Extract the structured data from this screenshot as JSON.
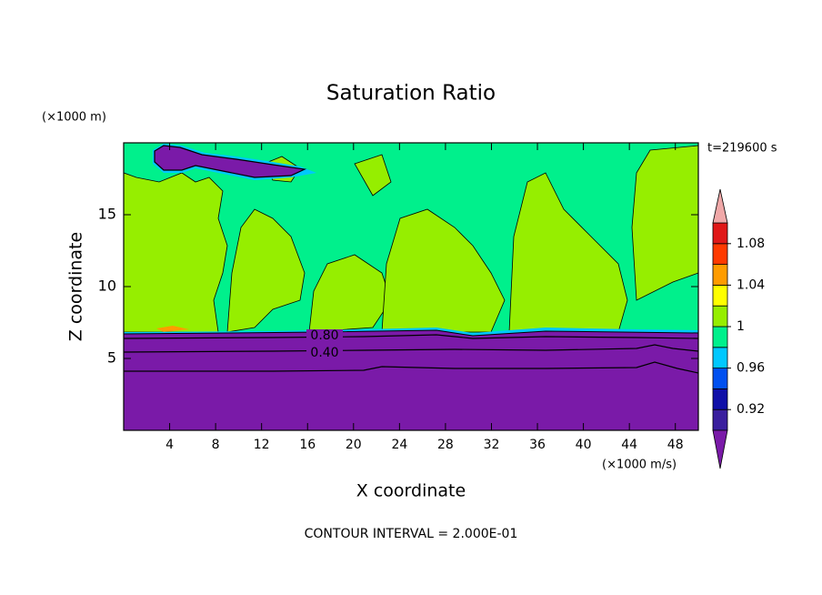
{
  "chart_data": {
    "type": "contour",
    "title": "Saturation Ratio",
    "x_label": "X coordinate",
    "y_label": "Z coordinate",
    "x_unit": "(×1000 m/s)",
    "y_unit": "(×1000 m)",
    "time_label": "t=219600 s",
    "footer": "CONTOUR INTERVAL = 2.000E-01",
    "xlim": [
      0,
      50
    ],
    "ylim": [
      0,
      20
    ],
    "xticks": [
      4,
      8,
      12,
      16,
      20,
      24,
      28,
      32,
      36,
      40,
      44,
      48
    ],
    "yticks": [
      5,
      10,
      15
    ],
    "contour_labels": [
      {
        "value": 0.8,
        "label": "0.80"
      },
      {
        "value": 0.4,
        "label": "0.40"
      }
    ],
    "colorbar": {
      "levels": [
        0.9,
        0.92,
        0.94,
        0.96,
        0.98,
        1,
        1.02,
        1.04,
        1.06,
        1.08,
        1.1
      ],
      "colors": [
        "#3a1f9e",
        "#1010a8",
        "#0050f0",
        "#00c8ff",
        "#00f08c",
        "#96ee00",
        "#ffff00",
        "#ff9c00",
        "#ff3a00",
        "#e01818"
      ],
      "under_color": "#7a1aa8",
      "over_color": "#f0a8a8",
      "ticks": [
        0.92,
        0.96,
        1,
        1.04,
        1.08
      ]
    }
  }
}
